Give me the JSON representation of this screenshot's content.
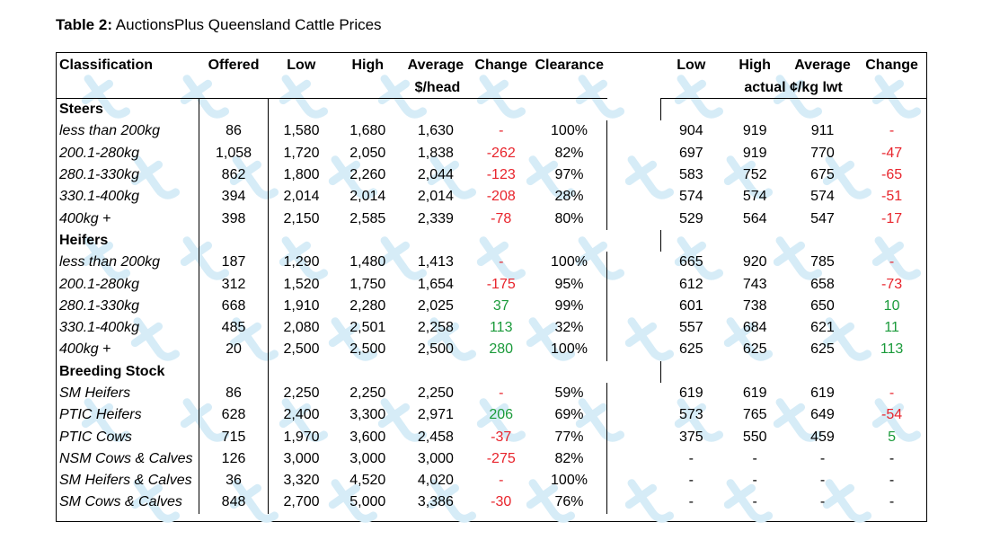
{
  "caption": {
    "prefix": "Table 2:",
    "text": "AuctionsPlus Queensland Cattle Prices"
  },
  "header": {
    "classification": "Classification",
    "offered": "Offered",
    "low": "Low",
    "high": "High",
    "average": "Average",
    "change": "Change",
    "clearance": "Clearance",
    "low2": "Low",
    "high2": "High",
    "average2": "Average",
    "change2": "Change",
    "unit_head": "$/head",
    "unit_kg": "actual ¢/kg lwt"
  },
  "sections": [
    {
      "title": "Steers",
      "rows": [
        {
          "cls": "less than 200kg",
          "offered": "86",
          "low": "1,580",
          "high": "1,680",
          "avg": "1,630",
          "change": "-",
          "change_color": "red",
          "clearance": "100%",
          "kg_low": "904",
          "kg_high": "919",
          "kg_avg": "911",
          "kg_change": "-",
          "kg_change_color": "red"
        },
        {
          "cls": "200.1-280kg",
          "offered": "1,058",
          "low": "1,720",
          "high": "2,050",
          "avg": "1,838",
          "change": "-262",
          "change_color": "red",
          "clearance": "82%",
          "kg_low": "697",
          "kg_high": "919",
          "kg_avg": "770",
          "kg_change": "-47",
          "kg_change_color": "red"
        },
        {
          "cls": "280.1-330kg",
          "offered": "862",
          "low": "1,800",
          "high": "2,260",
          "avg": "2,044",
          "change": "-123",
          "change_color": "red",
          "clearance": "97%",
          "kg_low": "583",
          "kg_high": "752",
          "kg_avg": "675",
          "kg_change": "-65",
          "kg_change_color": "red"
        },
        {
          "cls": "330.1-400kg",
          "offered": "394",
          "low": "2,014",
          "high": "2,014",
          "avg": "2,014",
          "change": "-208",
          "change_color": "red",
          "clearance": "28%",
          "kg_low": "574",
          "kg_high": "574",
          "kg_avg": "574",
          "kg_change": "-51",
          "kg_change_color": "red"
        },
        {
          "cls": "400kg +",
          "offered": "398",
          "low": "2,150",
          "high": "2,585",
          "avg": "2,339",
          "change": "-78",
          "change_color": "red",
          "clearance": "80%",
          "kg_low": "529",
          "kg_high": "564",
          "kg_avg": "547",
          "kg_change": "-17",
          "kg_change_color": "red"
        }
      ]
    },
    {
      "title": "Heifers",
      "rows": [
        {
          "cls": "less than 200kg",
          "offered": "187",
          "low": "1,290",
          "high": "1,480",
          "avg": "1,413",
          "change": "-",
          "change_color": "red",
          "clearance": "100%",
          "kg_low": "665",
          "kg_high": "920",
          "kg_avg": "785",
          "kg_change": "-",
          "kg_change_color": "red"
        },
        {
          "cls": "200.1-280kg",
          "offered": "312",
          "low": "1,520",
          "high": "1,750",
          "avg": "1,654",
          "change": "-175",
          "change_color": "red",
          "clearance": "95%",
          "kg_low": "612",
          "kg_high": "743",
          "kg_avg": "658",
          "kg_change": "-73",
          "kg_change_color": "red"
        },
        {
          "cls": "280.1-330kg",
          "offered": "668",
          "low": "1,910",
          "high": "2,280",
          "avg": "2,025",
          "change": "37",
          "change_color": "green",
          "clearance": "99%",
          "kg_low": "601",
          "kg_high": "738",
          "kg_avg": "650",
          "kg_change": "10",
          "kg_change_color": "green"
        },
        {
          "cls": "330.1-400kg",
          "offered": "485",
          "low": "2,080",
          "high": "2,501",
          "avg": "2,258",
          "change": "113",
          "change_color": "green",
          "clearance": "32%",
          "kg_low": "557",
          "kg_high": "684",
          "kg_avg": "621",
          "kg_change": "11",
          "kg_change_color": "green"
        },
        {
          "cls": "400kg +",
          "offered": "20",
          "low": "2,500",
          "high": "2,500",
          "avg": "2,500",
          "change": "280",
          "change_color": "green",
          "clearance": "100%",
          "kg_low": "625",
          "kg_high": "625",
          "kg_avg": "625",
          "kg_change": "113",
          "kg_change_color": "green"
        }
      ]
    },
    {
      "title": "Breeding Stock",
      "rows": [
        {
          "cls": "SM Heifers",
          "offered": "86",
          "low": "2,250",
          "high": "2,250",
          "avg": "2,250",
          "change": "-",
          "change_color": "red",
          "clearance": "59%",
          "kg_low": "619",
          "kg_high": "619",
          "kg_avg": "619",
          "kg_change": "-",
          "kg_change_color": "red"
        },
        {
          "cls": "PTIC Heifers",
          "offered": "628",
          "low": "2,400",
          "high": "3,300",
          "avg": "2,971",
          "change": "206",
          "change_color": "green",
          "clearance": "69%",
          "kg_low": "573",
          "kg_high": "765",
          "kg_avg": "649",
          "kg_change": "-54",
          "kg_change_color": "red"
        },
        {
          "cls": "PTIC Cows",
          "offered": "715",
          "low": "1,970",
          "high": "3,600",
          "avg": "2,458",
          "change": "-37",
          "change_color": "red",
          "clearance": "77%",
          "kg_low": "375",
          "kg_high": "550",
          "kg_avg": "459",
          "kg_change": "5",
          "kg_change_color": "green"
        },
        {
          "cls": "NSM Cows & Calves",
          "offered": "126",
          "low": "3,000",
          "high": "3,000",
          "avg": "3,000",
          "change": "-275",
          "change_color": "red",
          "clearance": "82%",
          "kg_low": "-",
          "kg_high": "-",
          "kg_avg": "-",
          "kg_change": "-",
          "kg_change_color": "black"
        },
        {
          "cls": "SM Heifers & Calves",
          "offered": "36",
          "low": "3,320",
          "high": "4,520",
          "avg": "4,020",
          "change": "-",
          "change_color": "red",
          "clearance": "100%",
          "kg_low": "-",
          "kg_high": "-",
          "kg_avg": "-",
          "kg_change": "-",
          "kg_change_color": "black"
        },
        {
          "cls": "SM Cows & Calves",
          "offered": "848",
          "low": "2,700",
          "high": "5,000",
          "avg": "3,386",
          "change": "-30",
          "change_color": "red",
          "clearance": "76%",
          "kg_low": "-",
          "kg_high": "-",
          "kg_avg": "-",
          "kg_change": "-",
          "kg_change_color": "black"
        }
      ]
    }
  ],
  "colors": {
    "negative": "#e8242c",
    "positive": "#1a9a3a",
    "watermark": "#d6ecf7"
  }
}
